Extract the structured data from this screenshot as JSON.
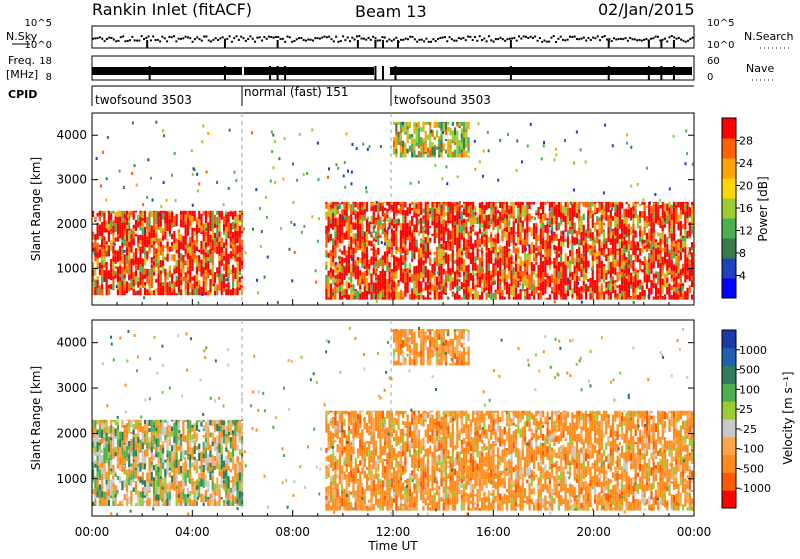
{
  "header": {
    "title": "Rankin Inlet (fitACF)",
    "beam": "Beam 13",
    "date": "02/Jan/2015"
  },
  "status": {
    "nsky_label": "N.Sky",
    "nsky_ticks": [
      "10^5",
      "10^0"
    ],
    "nsearch_label": "N.Search",
    "nsearch_ticks": [
      "10^5",
      "10^0"
    ],
    "freq_label": "Freq.",
    "freq_unit": "[MHz]",
    "freq_ticks": [
      "18",
      "8"
    ],
    "nave_label": "Nave",
    "nave_ticks": [
      "60",
      "0"
    ],
    "cpid_label": "CPID",
    "cpid_segments": [
      {
        "label": "twofsound 3503",
        "start_h": 0,
        "end_h": 6
      },
      {
        "label": "normal (fast) 151",
        "start_h": 6,
        "end_h": 12
      },
      {
        "label": "twofsound 3503",
        "start_h": 12,
        "end_h": 24
      }
    ]
  },
  "chart_data": [
    {
      "type": "heatmap",
      "panel": "power",
      "ylabel": "Slant Range [km]",
      "xlabel": "Time UT",
      "x_ticks": [
        "00:00",
        "04:00",
        "08:00",
        "12:00",
        "16:00",
        "20:00",
        "00:00"
      ],
      "x_range_hours": [
        0,
        24
      ],
      "y_ticks": [
        1000,
        2000,
        3000,
        4000
      ],
      "ylim": [
        180,
        4500
      ],
      "colorbar": {
        "label": "Power [dB]",
        "ticks": [
          "4",
          "8",
          "12",
          "16",
          "20",
          "24",
          "28"
        ],
        "range": [
          0,
          30
        ],
        "colors": [
          "#0000ff",
          "#2040c0",
          "#3a7a4a",
          "#4caf50",
          "#9acd32",
          "#ffd700",
          "#ffa500",
          "#ff6000",
          "#ff0000"
        ]
      },
      "features": [
        {
          "hours": [
            0,
            6
          ],
          "range_km": [
            400,
            2300
          ],
          "level": "high"
        },
        {
          "hours": [
            9.3,
            24
          ],
          "range_km": [
            300,
            2500
          ],
          "level": "high"
        },
        {
          "hours": [
            12,
            15
          ],
          "range_km": [
            3500,
            4300
          ],
          "level": "medium"
        }
      ]
    },
    {
      "type": "heatmap",
      "panel": "velocity",
      "ylabel": "Slant Range [km]",
      "xlabel": "Time UT",
      "x_ticks": [
        "00:00",
        "04:00",
        "08:00",
        "12:00",
        "16:00",
        "20:00",
        "00:00"
      ],
      "x_range_hours": [
        0,
        24
      ],
      "y_ticks": [
        1000,
        2000,
        3000,
        4000
      ],
      "ylim": [
        180,
        4500
      ],
      "colorbar": {
        "label": "Velocity [m s⁻¹]",
        "ticks": [
          "1000",
          "500",
          "100",
          "25",
          "-25",
          "-100",
          "-500",
          "-1000"
        ],
        "range": [
          -1000,
          1000
        ],
        "colors": [
          "#ff0000",
          "#ff5a00",
          "#ff8c1a",
          "#ffa64d",
          "#c8c8c8",
          "#9acd32",
          "#4caf50",
          "#2e7d5a",
          "#1f5fb0",
          "#1a3aa8"
        ]
      },
      "features": [
        {
          "hours": [
            0,
            6
          ],
          "range_km": [
            400,
            2300
          ],
          "level": "mixed"
        },
        {
          "hours": [
            9.3,
            24
          ],
          "range_km": [
            300,
            2500
          ],
          "level": "negative"
        },
        {
          "hours": [
            12,
            15
          ],
          "range_km": [
            3500,
            4300
          ],
          "level": "negative"
        }
      ]
    }
  ]
}
